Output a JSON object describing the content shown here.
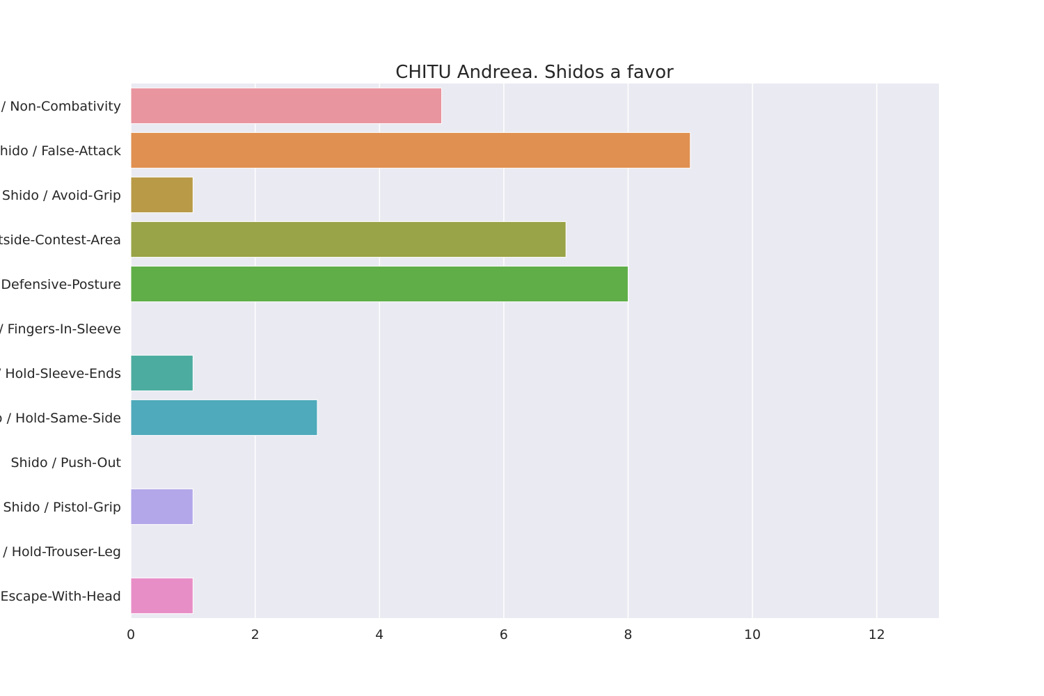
{
  "chart_data": {
    "type": "bar",
    "orientation": "horizontal",
    "title": "CHITU Andreea. Shidos a favor",
    "xlabel": "",
    "ylabel": "",
    "xlim": [
      0,
      13
    ],
    "xticks": [
      0,
      2,
      4,
      6,
      8,
      10,
      12
    ],
    "grid": true,
    "background": "#eaeaf2",
    "categories": [
      "Shido / Non-Combativity",
      "Shido / False-Attack",
      "Shido / Avoid-Grip",
      "Shido / Outside-Contest-Area",
      "Shido / Defensive-Posture",
      "Shido / Fingers-In-Sleeve",
      "Shido / Hold-Sleeve-Ends",
      "Shido / Hold-Same-Side",
      "Shido / Push-Out",
      "Shido / Pistol-Grip",
      "Shido / Hold-Trouser-Leg",
      "Shido / Escape-With-Head"
    ],
    "values": [
      5,
      9,
      1,
      7,
      8,
      0,
      1,
      3,
      0,
      1,
      0,
      1
    ],
    "colors": [
      "#e8959f",
      "#e09051",
      "#b89a47",
      "#99a347",
      "#5fae48",
      "#4cae86",
      "#4cac9f",
      "#4faabb",
      "#8ea8e0",
      "#b3a7ea",
      "#d592e5",
      "#e88ec6"
    ]
  }
}
